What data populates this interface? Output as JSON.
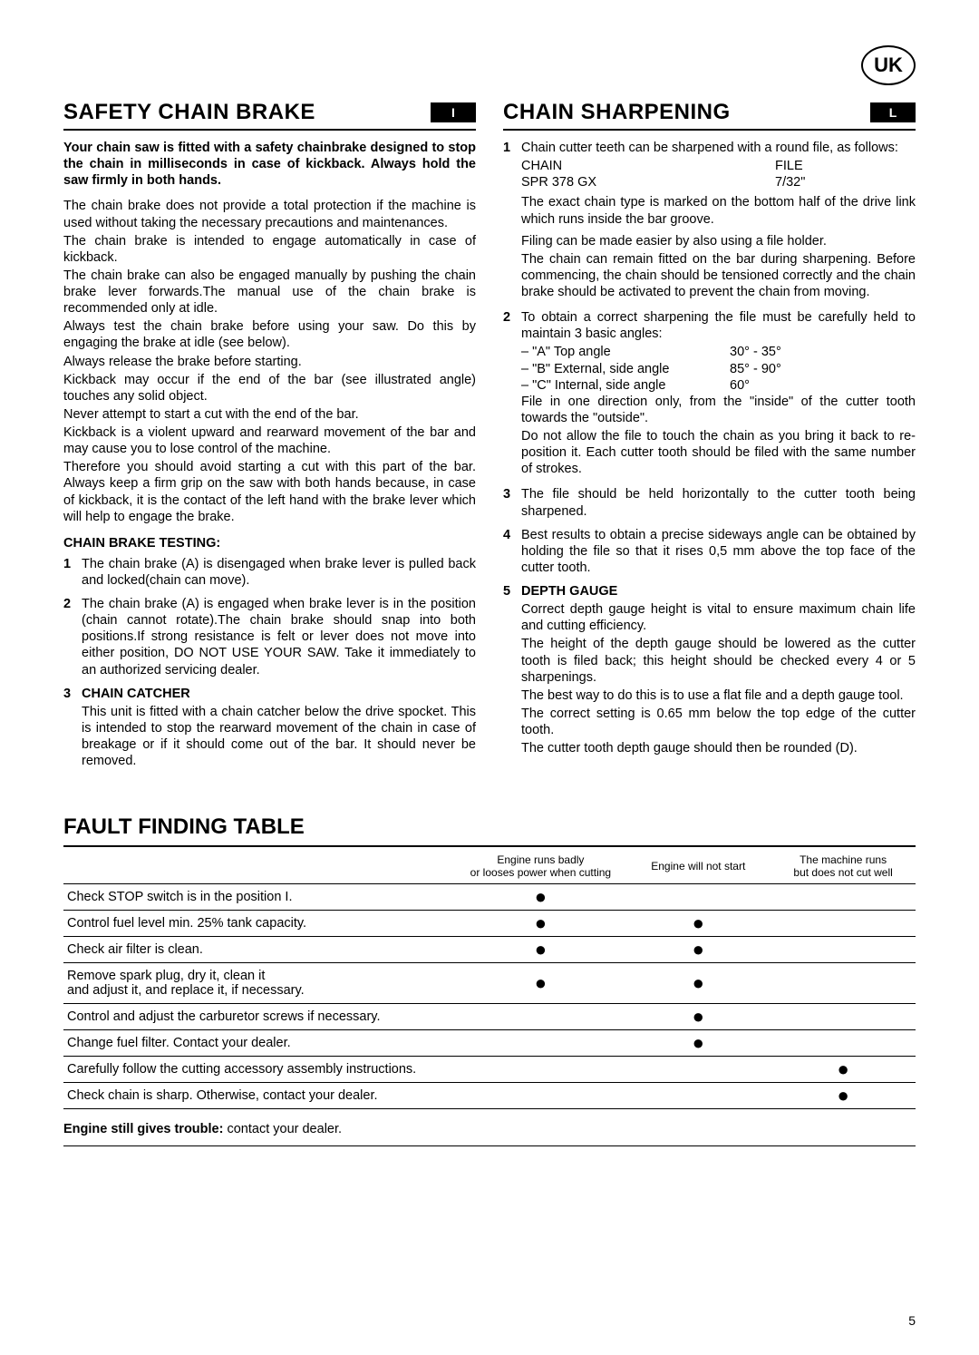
{
  "badge": "UK",
  "page_number": "5",
  "left": {
    "title": "SAFETY CHAIN BRAKE",
    "tag": "I",
    "intro_bold": "Your chain saw is fitted with a safety chainbrake designed to stop the chain in milliseconds in case of kickback. Always hold the saw firmly in both hands.",
    "paras": [
      "The chain brake does not provide a total protection if the machine is used without taking the necessary precautions and maintenances.",
      "The chain brake is intended to engage automatically in case of kickback.",
      "The chain brake can also be engaged manually by pushing the chain brake lever forwards.The manual use of the chain brake is recommended only at idle.",
      "Always test the chain brake before using your saw. Do this by engaging the brake at idle (see below).",
      "Always release the brake before starting.",
      "Kickback may occur if the end of the bar (see illustrated angle) touches any solid object.",
      "Never attempt to start a cut with the end of the bar.",
      "Kickback is a violent upward and rearward movement of the bar and may cause you to lose control of the machine.",
      "Therefore you should avoid starting a cut with this part of the bar. Always keep a firm grip on the saw with both hands because, in case of kickback, it is the contact of the left hand with the brake lever which will help to engage the brake."
    ],
    "sub1_title": "CHAIN BRAKE TESTING:",
    "sub1_items": {
      "n1": "1",
      "t1": "The chain brake (A) is disengaged when brake lever is pulled back and locked(chain can move).",
      "n2": "2",
      "t2": "The chain brake (A) is engaged when brake lever is in the position (chain cannot rotate).The chain brake should snap into both positions.If strong resistance is felt or lever does not move into either position, DO NOT USE YOUR SAW. Take it immediately to an authorized servicing dealer.",
      "n3": "3",
      "t3_head": "CHAIN CATCHER",
      "t3": "This unit is fitted with a chain catcher below the drive spocket. This is intended to stop the rearward movement of the chain in case of breakage or if it should come out of the bar. It should never be removed."
    }
  },
  "right": {
    "title": "CHAIN SHARPENING",
    "tag": "L",
    "items": {
      "n1": "1",
      "t1a": "Chain cutter teeth can be sharpened with a round file, as follows:",
      "ch_hdr1": "CHAIN",
      "ch_hdr2": "FILE",
      "ch_v1": "SPR 378 GX",
      "ch_v2": "7/32\"",
      "t1b": "The exact chain type is marked on the bottom half of the drive link which runs inside the bar groove.",
      "t1c": "Filing can be made easier by also using a file holder.",
      "t1d": "The chain can remain fitted on the bar during sharpening. Before commencing, the chain should be tensioned correctly and the chain brake should be activated to prevent the chain from moving.",
      "n2": "2",
      "t2a": "To obtain a correct sharpening the file must be carefully held to maintain 3 basic angles:",
      "a1l": "– \"A\" Top angle",
      "a1v": "30° - 35°",
      "a2l": "– \"B\" External, side angle",
      "a2v": "85° - 90°",
      "a3l": "– \"C\" Internal,  side angle",
      "a3v": "60°",
      "t2b": "File in one direction only, from the \"inside\" of the cutter tooth towards the \"outside\".",
      "t2c": "Do not allow the file to touch the chain as you bring it back to re-position it. Each cutter tooth should be filed with the same number of strokes.",
      "n3": "3",
      "t3": "The file should be held horizontally to the cutter tooth being sharpened.",
      "n4": "4",
      "t4": "Best results to obtain a precise sideways angle can be obtained by holding the file so that it rises 0,5 mm above the top face of the cutter tooth.",
      "n5": "5",
      "t5_head": "DEPTH GAUGE",
      "t5a": "Correct depth gauge height is vital to ensure maximum chain life and cutting efficiency.",
      "t5b": "The height of the depth gauge should be lowered as the cutter tooth is filed back; this height should be checked every 4 or 5 sharpenings.",
      "t5c": "The best way to do this is to use a flat file and a depth gauge tool.",
      "t5d": "The correct setting is 0.65 mm below the top edge of the cutter tooth.",
      "t5e": "The cutter tooth depth gauge should then be rounded (D)."
    }
  },
  "fault": {
    "title": "FAULT FINDING TABLE",
    "headers": {
      "h1": "Engine runs badly\nor looses power when cutting",
      "h2": "Engine will not start",
      "h3": "The machine runs\nbut does not cut well"
    },
    "rows": [
      {
        "label": "Check STOP switch is in the position I.",
        "c1": true,
        "c2": false,
        "c3": false
      },
      {
        "label": "Control fuel level min. 25% tank capacity.",
        "c1": true,
        "c2": true,
        "c3": false
      },
      {
        "label": "Check air filter is clean.",
        "c1": true,
        "c2": true,
        "c3": false
      },
      {
        "label": "Remove spark plug, dry it, clean it\nand adjust it, and replace it, if necessary.",
        "c1": true,
        "c2": true,
        "c3": false
      },
      {
        "label": "Control and adjust the carburetor screws if necessary.",
        "c1": false,
        "c2": true,
        "c3": false
      },
      {
        "label": "Change fuel filter. Contact your dealer.",
        "c1": false,
        "c2": true,
        "c3": false
      },
      {
        "label": "Carefully follow the cutting accessory assembly instructions.",
        "c1": false,
        "c2": false,
        "c3": true
      },
      {
        "label": "Check chain is sharp. Otherwise, contact your dealer.",
        "c1": false,
        "c2": false,
        "c3": true
      }
    ],
    "footnote_bold": "Engine still gives trouble:",
    "footnote_rest": " contact your dealer."
  }
}
